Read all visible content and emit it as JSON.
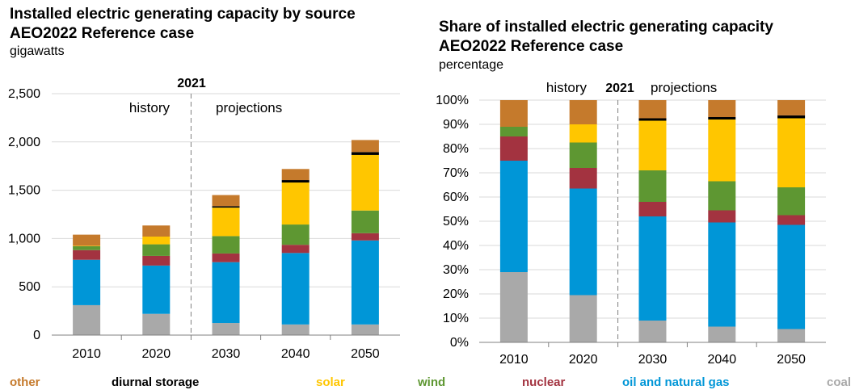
{
  "charts": [
    {
      "title_line1": "Installed electric generating capacity by source",
      "title_line2": "AEO2022 Reference case",
      "unit": "gigawatts",
      "divider_label": "2021",
      "history_label": "history",
      "projections_label": "projections"
    },
    {
      "title_line1": "Share of installed electric generating capacity",
      "title_line2": "AEO2022 Reference case",
      "unit": "percentage",
      "divider_label": "2021",
      "history_label": "history",
      "projections_label": "projections"
    }
  ],
  "legend": [
    {
      "label": "other",
      "color": "#c57a2c"
    },
    {
      "label": "diurnal storage",
      "color": "#000000"
    },
    {
      "label": "solar",
      "color": "#ffc600"
    },
    {
      "label": "wind",
      "color": "#5e9732"
    },
    {
      "label": "nuclear",
      "color": "#a33340"
    },
    {
      "label": "oil and natural gas",
      "color": "#0096d7"
    },
    {
      "label": "coal",
      "color": "#a9a9a9"
    }
  ],
  "chart_data": [
    {
      "type": "bar",
      "stacked": true,
      "title": "Installed electric generating capacity by source AEO2022 Reference case",
      "ylabel": "gigawatts",
      "xlabel": "",
      "categories": [
        "2010",
        "2020",
        "2030",
        "2040",
        "2050"
      ],
      "ylim": [
        0,
        2500
      ],
      "yticks": [
        0,
        500,
        1000,
        1500,
        2000,
        2500
      ],
      "ytick_labels": [
        "0",
        "500",
        "1,000",
        "1,500",
        "2,000",
        "2,500"
      ],
      "grid": true,
      "divider_between": [
        "2020",
        "2030"
      ],
      "series": [
        {
          "name": "coal",
          "color": "#a9a9a9",
          "values": [
            310,
            220,
            125,
            110,
            110
          ]
        },
        {
          "name": "oil and natural gas",
          "color": "#0096d7",
          "values": [
            470,
            500,
            630,
            740,
            870
          ]
        },
        {
          "name": "nuclear",
          "color": "#a33340",
          "values": [
            100,
            100,
            90,
            85,
            75
          ]
        },
        {
          "name": "wind",
          "color": "#5e9732",
          "values": [
            40,
            120,
            180,
            210,
            235
          ]
        },
        {
          "name": "solar",
          "color": "#ffc600",
          "values": [
            5,
            80,
            295,
            435,
            575
          ]
        },
        {
          "name": "diurnal storage",
          "color": "#000000",
          "values": [
            0,
            0,
            15,
            25,
            30
          ]
        },
        {
          "name": "other",
          "color": "#c57a2c",
          "values": [
            115,
            115,
            115,
            115,
            125
          ]
        }
      ]
    },
    {
      "type": "bar",
      "stacked": true,
      "title": "Share of installed electric generating capacity AEO2022 Reference case",
      "ylabel": "percentage",
      "xlabel": "",
      "categories": [
        "2010",
        "2020",
        "2030",
        "2040",
        "2050"
      ],
      "ylim": [
        0,
        100
      ],
      "yticks": [
        0,
        10,
        20,
        30,
        40,
        50,
        60,
        70,
        80,
        90,
        100
      ],
      "ytick_labels": [
        "0%",
        "10%",
        "20%",
        "30%",
        "40%",
        "50%",
        "60%",
        "70%",
        "80%",
        "90%",
        "100%"
      ],
      "grid": true,
      "divider_between": [
        "2020",
        "2030"
      ],
      "series": [
        {
          "name": "coal",
          "color": "#a9a9a9",
          "values": [
            29,
            19.5,
            9,
            6.5,
            5.5
          ]
        },
        {
          "name": "oil and natural gas",
          "color": "#0096d7",
          "values": [
            46,
            44,
            43,
            43,
            43
          ]
        },
        {
          "name": "nuclear",
          "color": "#a33340",
          "values": [
            10,
            8.5,
            6,
            5,
            4
          ]
        },
        {
          "name": "wind",
          "color": "#5e9732",
          "values": [
            4,
            10.5,
            13,
            12,
            11.5
          ]
        },
        {
          "name": "solar",
          "color": "#ffc600",
          "values": [
            0,
            7.5,
            20.5,
            25.5,
            28.5
          ]
        },
        {
          "name": "diurnal storage",
          "color": "#000000",
          "values": [
            0,
            0,
            1,
            1,
            1.2
          ]
        },
        {
          "name": "other",
          "color": "#c57a2c",
          "values": [
            11,
            10,
            7.5,
            7,
            6.3
          ]
        }
      ]
    }
  ]
}
